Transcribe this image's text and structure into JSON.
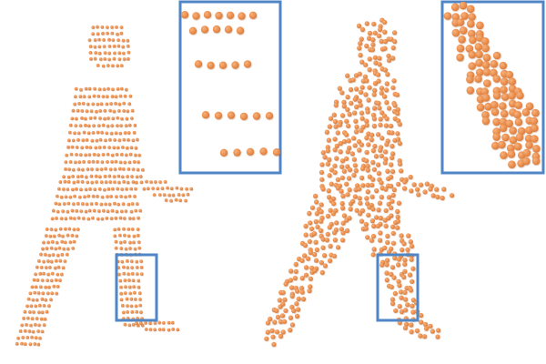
{
  "figure": {
    "panels": [
      {
        "point_distribution": "sparse-scanlines"
      },
      {
        "point_distribution": "dense-uniform"
      }
    ],
    "point_color": "#e98a48",
    "point_highlight": "#f6b27d",
    "point_shadow": "#d57a3d",
    "box_color": "#4f86c6"
  }
}
